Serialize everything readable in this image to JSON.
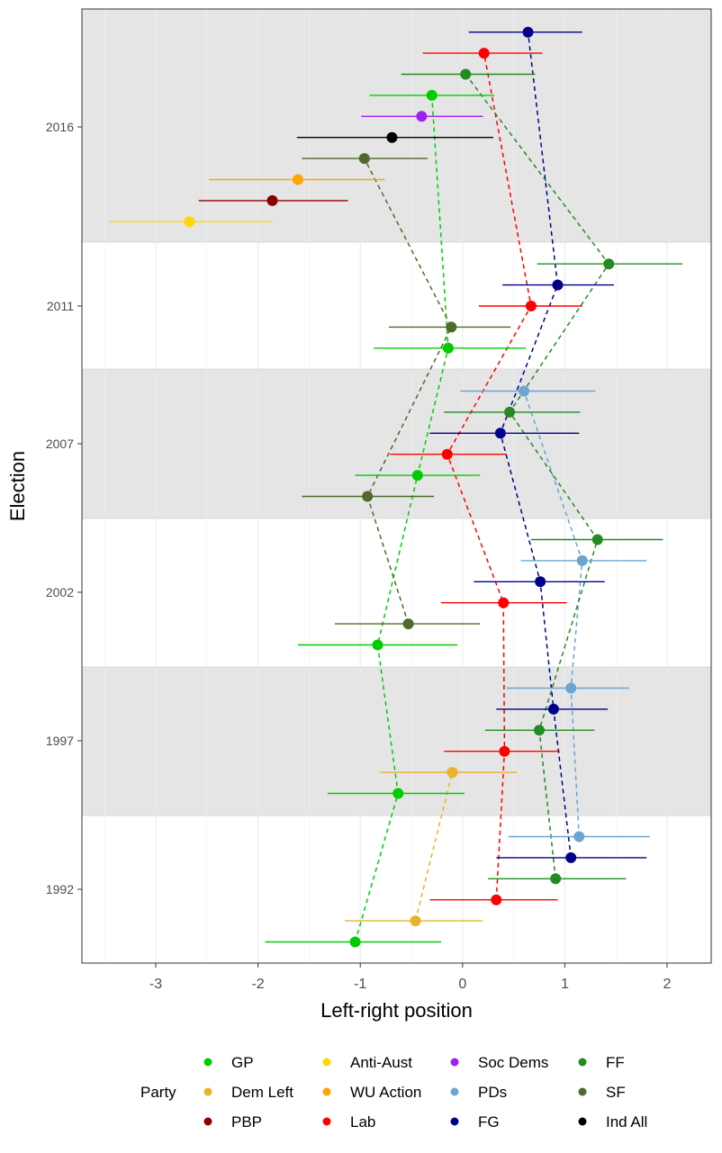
{
  "chart_data": {
    "type": "scatter",
    "subtype": "point-range with dashed connecting lines",
    "xlabel": "Left-right position",
    "ylabel": "Election",
    "xlim": [
      -3.7,
      2.4
    ],
    "x_ticks": [
      -3,
      -2,
      -1,
      0,
      1,
      2
    ],
    "elections": [
      "1992",
      "1997",
      "2002",
      "2007",
      "2011",
      "2016"
    ],
    "band_shading": [
      "white",
      "grey",
      "white",
      "grey",
      "white",
      "grey"
    ],
    "grid": true,
    "legend_position": "bottom",
    "legend_title": "Party",
    "series": [
      {
        "name": "GP",
        "color": "#00cd00",
        "points": [
          {
            "election": "1992",
            "x": -1.05,
            "lo": -1.93,
            "hi": -0.21
          },
          {
            "election": "1997",
            "x": -0.63,
            "lo": -1.32,
            "hi": 0.02
          },
          {
            "election": "2002",
            "x": -0.83,
            "lo": -1.61,
            "hi": -0.05
          },
          {
            "election": "2007",
            "x": -0.44,
            "lo": -1.05,
            "hi": 0.17
          },
          {
            "election": "2011",
            "x": -0.14,
            "lo": -0.87,
            "hi": 0.62
          },
          {
            "election": "2016",
            "x": -0.3,
            "lo": -0.91,
            "hi": 0.31
          }
        ]
      },
      {
        "name": "Dem Left",
        "color": "#e8b22a",
        "points": [
          {
            "election": "1992",
            "x": -0.46,
            "lo": -1.15,
            "hi": 0.2
          },
          {
            "election": "1997",
            "x": -0.1,
            "lo": -0.81,
            "hi": 0.53
          }
        ]
      },
      {
        "name": "PBP",
        "color": "#8b0000",
        "points": [
          {
            "election": "2016",
            "x": -1.86,
            "lo": -2.58,
            "hi": -1.12
          }
        ]
      },
      {
        "name": "Anti-Aust",
        "color": "#ffd700",
        "points": [
          {
            "election": "2016",
            "x": -2.67,
            "lo": -3.45,
            "hi": -1.86
          }
        ]
      },
      {
        "name": "WU Action",
        "color": "#ffa500",
        "points": [
          {
            "election": "2016",
            "x": -1.61,
            "lo": -2.48,
            "hi": -0.76
          }
        ]
      },
      {
        "name": "Lab",
        "color": "#ff0000",
        "points": [
          {
            "election": "1992",
            "x": 0.33,
            "lo": -0.32,
            "hi": 0.93
          },
          {
            "election": "1997",
            "x": 0.41,
            "lo": -0.18,
            "hi": 0.95
          },
          {
            "election": "2002",
            "x": 0.4,
            "lo": -0.21,
            "hi": 1.02
          },
          {
            "election": "2007",
            "x": -0.15,
            "lo": -0.71,
            "hi": 0.43
          },
          {
            "election": "2011",
            "x": 0.67,
            "lo": 0.16,
            "hi": 1.17
          },
          {
            "election": "2016",
            "x": 0.21,
            "lo": -0.39,
            "hi": 0.78
          }
        ]
      },
      {
        "name": "Soc Dems",
        "color": "#a020f0",
        "points": [
          {
            "election": "2016",
            "x": -0.4,
            "lo": -0.99,
            "hi": 0.2
          }
        ]
      },
      {
        "name": "PDs",
        "color": "#6ba5d1",
        "points": [
          {
            "election": "1992",
            "x": 1.14,
            "lo": 0.45,
            "hi": 1.83
          },
          {
            "election": "1997",
            "x": 1.06,
            "lo": 0.43,
            "hi": 1.63
          },
          {
            "election": "2002",
            "x": 1.17,
            "lo": 0.57,
            "hi": 1.8
          },
          {
            "election": "2007",
            "x": 0.6,
            "lo": -0.02,
            "hi": 1.3
          }
        ]
      },
      {
        "name": "FG",
        "color": "#00008b",
        "points": [
          {
            "election": "1992",
            "x": 1.06,
            "lo": 0.33,
            "hi": 1.8
          },
          {
            "election": "1997",
            "x": 0.89,
            "lo": 0.33,
            "hi": 1.42
          },
          {
            "election": "2002",
            "x": 0.76,
            "lo": 0.11,
            "hi": 1.39
          },
          {
            "election": "2007",
            "x": 0.37,
            "lo": -0.32,
            "hi": 1.14
          },
          {
            "election": "2011",
            "x": 0.93,
            "lo": 0.39,
            "hi": 1.48
          },
          {
            "election": "2016",
            "x": 0.64,
            "lo": 0.06,
            "hi": 1.17
          }
        ]
      },
      {
        "name": "FF",
        "color": "#228b22",
        "points": [
          {
            "election": "1992",
            "x": 0.91,
            "lo": 0.25,
            "hi": 1.6
          },
          {
            "election": "1997",
            "x": 0.75,
            "lo": 0.22,
            "hi": 1.29
          },
          {
            "election": "2002",
            "x": 1.32,
            "lo": 0.67,
            "hi": 1.96
          },
          {
            "election": "2007",
            "x": 0.46,
            "lo": -0.18,
            "hi": 1.15
          },
          {
            "election": "2011",
            "x": 1.43,
            "lo": 0.73,
            "hi": 2.15
          },
          {
            "election": "2016",
            "x": 0.03,
            "lo": -0.6,
            "hi": 0.71
          }
        ]
      },
      {
        "name": "SF",
        "color": "#4f6a2b",
        "points": [
          {
            "election": "2002",
            "x": -0.53,
            "lo": -1.25,
            "hi": 0.17
          },
          {
            "election": "2007",
            "x": -0.93,
            "lo": -1.57,
            "hi": -0.28
          },
          {
            "election": "2011",
            "x": -0.11,
            "lo": -0.72,
            "hi": 0.47
          },
          {
            "election": "2016",
            "x": -0.96,
            "lo": -1.57,
            "hi": -0.34
          }
        ]
      },
      {
        "name": "Ind All",
        "color": "#000000",
        "points": [
          {
            "election": "2016",
            "x": -0.69,
            "lo": -1.62,
            "hi": 0.3
          }
        ]
      }
    ]
  }
}
